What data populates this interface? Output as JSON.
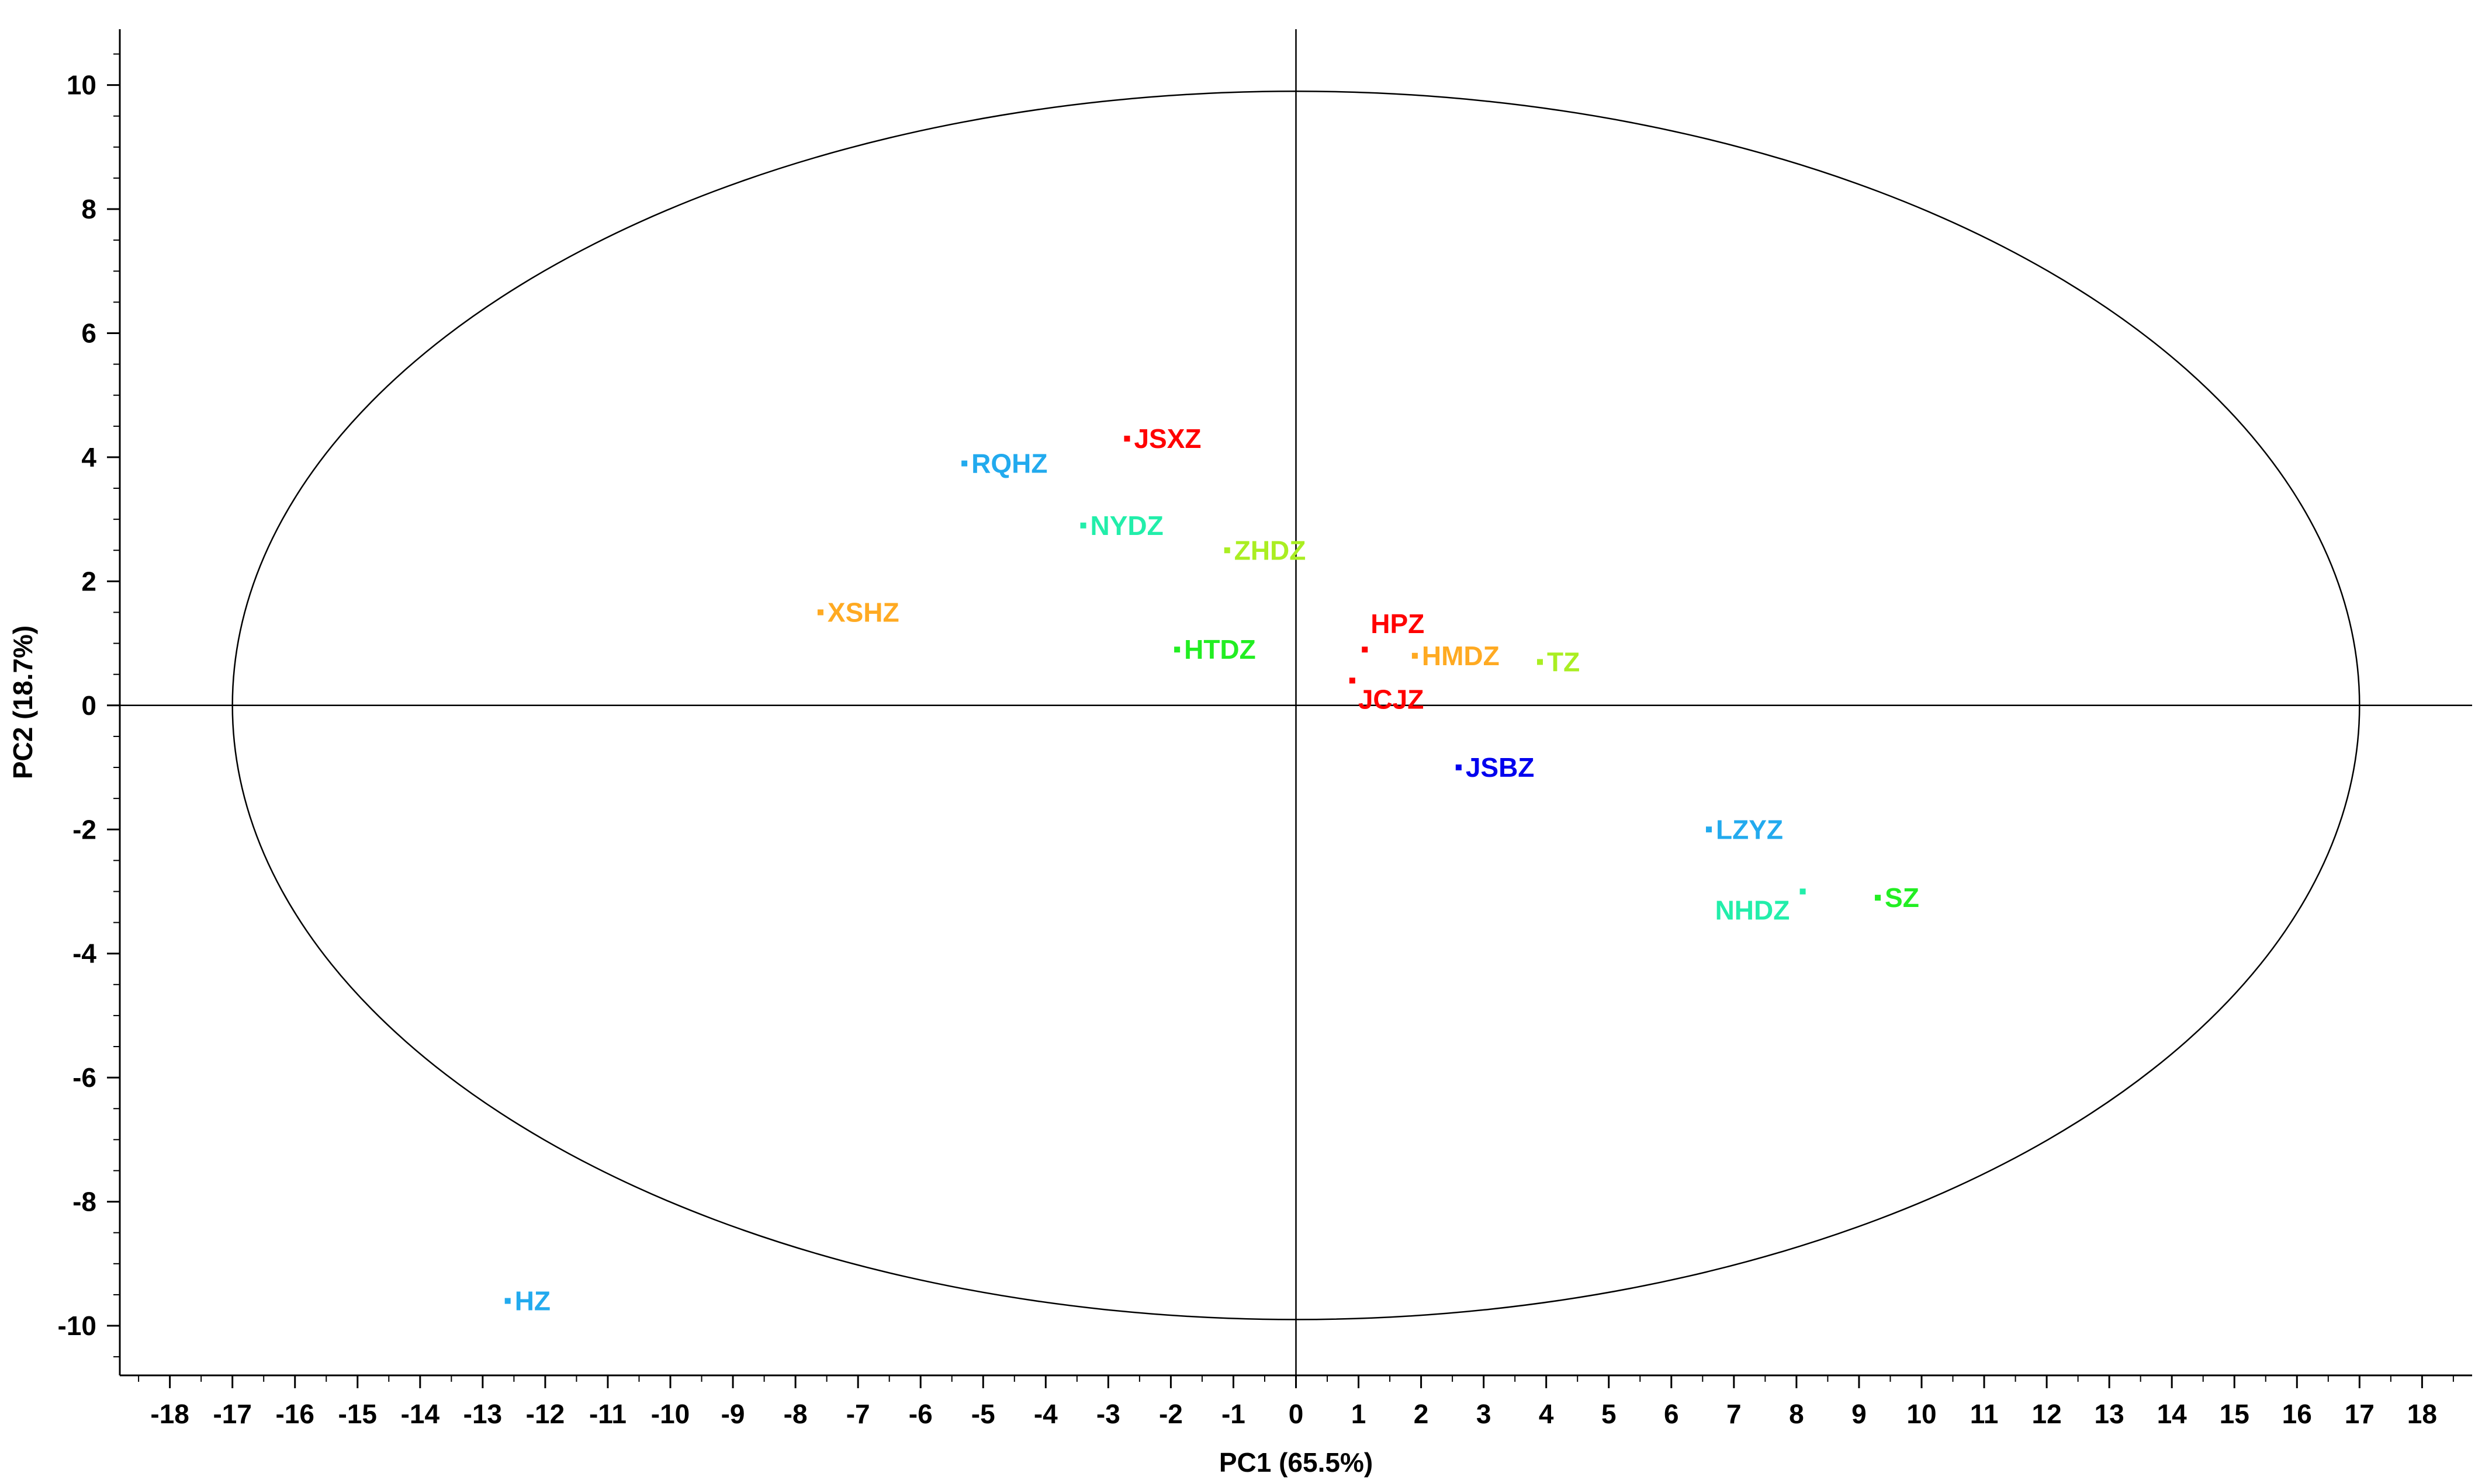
{
  "chart_data": {
    "type": "scatter",
    "xlabel": "PC1 (65.5%)",
    "ylabel": "PC2 (18.7%)",
    "xlim": [
      -18.8,
      18.8
    ],
    "ylim": [
      -10.8,
      10.9
    ],
    "xticks": [
      -18,
      -17,
      -16,
      -15,
      -14,
      -13,
      -12,
      -11,
      -10,
      -9,
      -8,
      -7,
      -6,
      -5,
      -4,
      -3,
      -2,
      -1,
      0,
      1,
      2,
      3,
      4,
      5,
      6,
      7,
      8,
      9,
      10,
      11,
      12,
      13,
      14,
      15,
      16,
      17,
      18
    ],
    "yticks": [
      -10,
      -8,
      -6,
      -4,
      -2,
      0,
      2,
      4,
      6,
      8,
      10
    ],
    "grid": false,
    "legend": "none",
    "zero_lines": true,
    "ellipse": {
      "rx": 17,
      "ry": 9.9
    },
    "points": [
      {
        "label": "JSXZ",
        "x": -2.7,
        "y": 4.3,
        "color": "#ff0000"
      },
      {
        "label": "RQHZ",
        "x": -5.3,
        "y": 3.9,
        "color": "#22aaee"
      },
      {
        "label": "NYDZ",
        "x": -3.4,
        "y": 2.9,
        "color": "#22eeaa"
      },
      {
        "label": "ZHDZ",
        "x": -1.1,
        "y": 2.5,
        "color": "#aaee22"
      },
      {
        "label": "XSHZ",
        "x": -7.6,
        "y": 1.5,
        "color": "#ffaa22"
      },
      {
        "label": "HTDZ",
        "x": -1.9,
        "y": 0.9,
        "color": "#22ee22"
      },
      {
        "label": "HPZ",
        "x": 1.1,
        "y": 0.9,
        "color": "#ff0000"
      },
      {
        "label": "HMDZ",
        "x": 1.9,
        "y": 0.8,
        "color": "#ffaa22"
      },
      {
        "label": "TZ",
        "x": 3.9,
        "y": 0.7,
        "color": "#aaee22"
      },
      {
        "label": "JCJZ",
        "x": 0.9,
        "y": 0.4,
        "color": "#ff0000"
      },
      {
        "label": "JSBZ",
        "x": 2.6,
        "y": -1.0,
        "color": "#0000ee"
      },
      {
        "label": "LZYZ",
        "x": 6.6,
        "y": -2.0,
        "color": "#22aaee"
      },
      {
        "label": "NHDZ",
        "x": 8.1,
        "y": -3.0,
        "color": "#22eeaa"
      },
      {
        "label": "SZ",
        "x": 9.3,
        "y": -3.1,
        "color": "#22ee22"
      },
      {
        "label": "HZ",
        "x": -12.6,
        "y": -9.6,
        "color": "#22aaee"
      }
    ]
  }
}
